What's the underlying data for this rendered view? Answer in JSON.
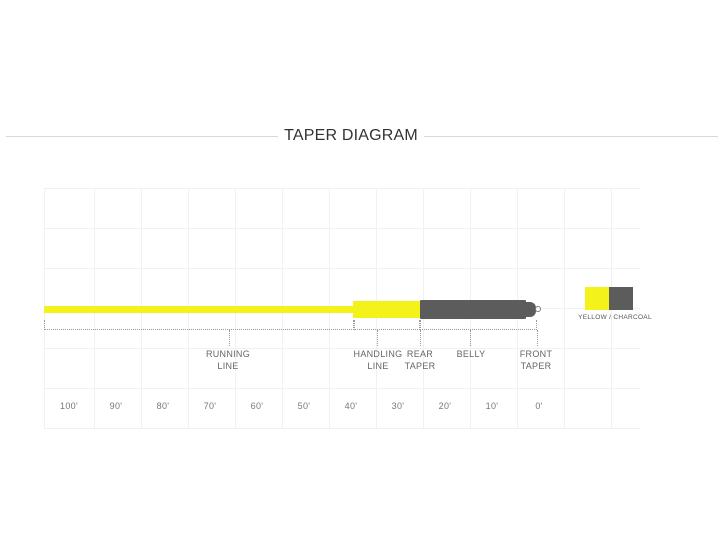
{
  "heading": {
    "title": "TAPER DIAGRAM"
  },
  "sections": [
    {
      "id": "running",
      "line1": "RUNNING",
      "line2": "LINE"
    },
    {
      "id": "handling",
      "line1": "HANDLING",
      "line2": "LINE"
    },
    {
      "id": "rear",
      "line1": "REAR",
      "line2": "TAPER"
    },
    {
      "id": "belly",
      "line1": "BELLY",
      "line2": ""
    },
    {
      "id": "front",
      "line1": "FRONT",
      "line2": "TAPER"
    }
  ],
  "distances": [
    "100'",
    "90'",
    "80'",
    "70'",
    "60'",
    "50'",
    "40'",
    "30'",
    "20'",
    "10'",
    "0'"
  ],
  "color_option": {
    "label": "YELLOW / CHARCOAL",
    "colors": [
      "#f3f21a",
      "#5c5c5c"
    ]
  }
}
